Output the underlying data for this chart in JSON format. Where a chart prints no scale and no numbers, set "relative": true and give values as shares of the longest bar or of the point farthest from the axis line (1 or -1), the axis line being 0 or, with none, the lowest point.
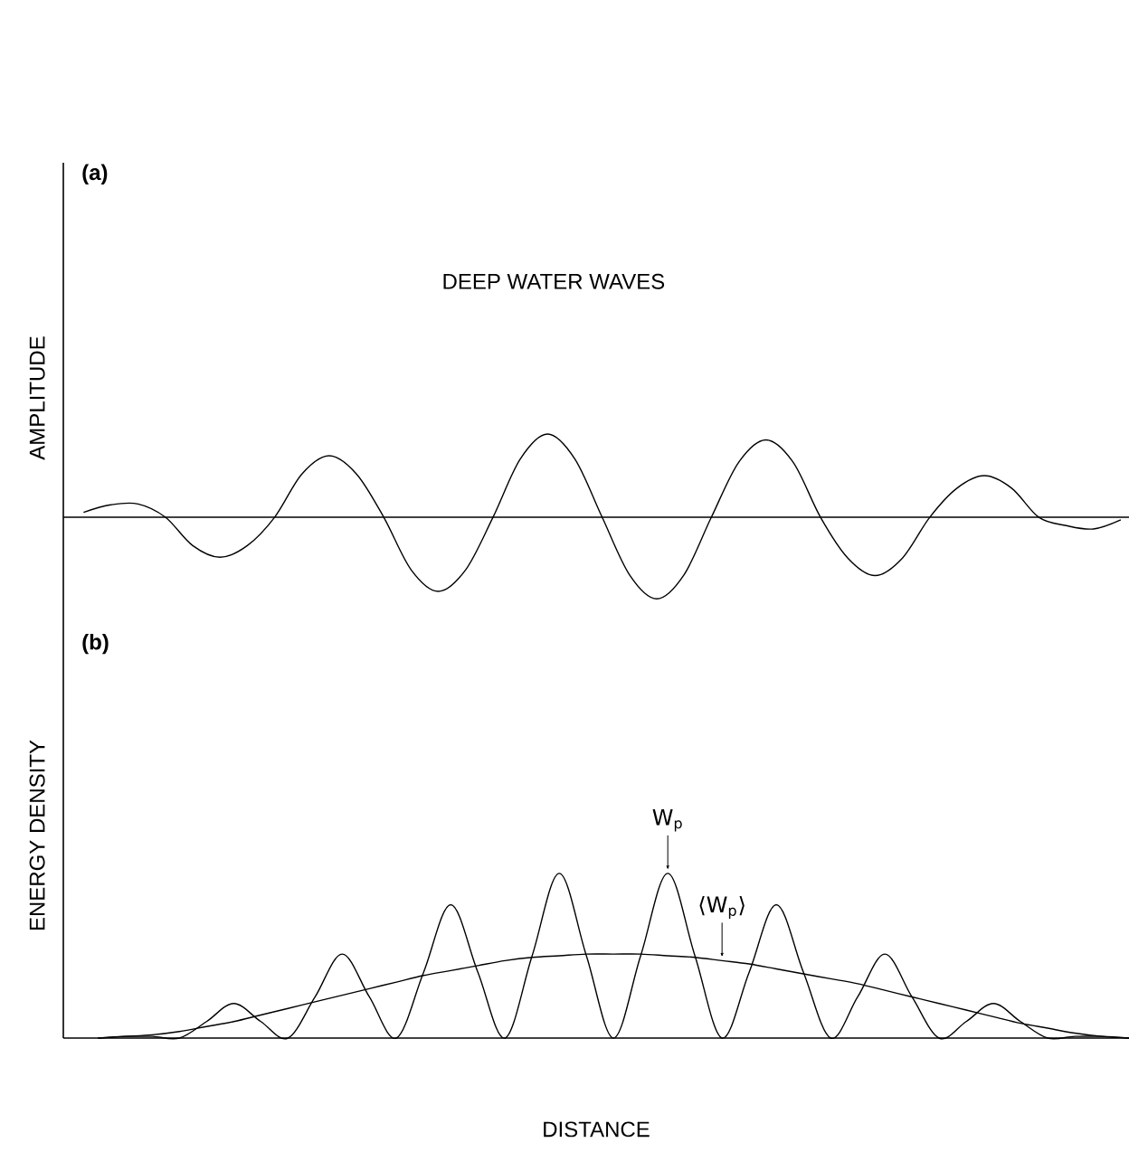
{
  "chart_data": [
    {
      "type": "line",
      "title": "(a)",
      "subtitle": "DEEP WATER WAVES",
      "ylabel": "AMPLITUDE",
      "relative": true,
      "categories": [
        null,
        null,
        null,
        null,
        null,
        null,
        null,
        null,
        null,
        null,
        null,
        null,
        null,
        null,
        null,
        null,
        null,
        null,
        null,
        null,
        null,
        null,
        null,
        null,
        null,
        null,
        null,
        null,
        null,
        null,
        null,
        null,
        null,
        null,
        null,
        null,
        null,
        null,
        null
      ],
      "series": [
        {
          "color": "#000000",
          "values": [
            0.06,
            0.15,
            0.16,
            0,
            -0.34,
            -0.48,
            -0.34,
            0,
            0.52,
            0.74,
            0.52,
            0,
            -0.63,
            -0.89,
            -0.63,
            0,
            0.7,
            1,
            0.7,
            0,
            -0.69,
            -0.98,
            -0.69,
            0,
            0.66,
            0.93,
            0.66,
            0,
            -0.49,
            -0.7,
            -0.49,
            0,
            0.35,
            0.5,
            0.35,
            0,
            -0.1,
            -0.14,
            -0.03
          ]
        }
      ]
    },
    {
      "type": "line",
      "title": "(b)",
      "ylabel": "ENERGY DENSITY",
      "xlabel": "DISTANCE",
      "relative": true,
      "categories": [
        null,
        null,
        null,
        null,
        null,
        null,
        null,
        null,
        null,
        null,
        null,
        null,
        null,
        null,
        null,
        null,
        null,
        null,
        null,
        null,
        null,
        null,
        null,
        null,
        null,
        null,
        null,
        null,
        null,
        null,
        null,
        null,
        null,
        null,
        null,
        null,
        null,
        null,
        null
      ],
      "series": [
        {
          "color": "#000000",
          "values": [
            0,
            0.01,
            0.01,
            0,
            0.1,
            0.21,
            0.1,
            0,
            0.25,
            0.51,
            0.25,
            0,
            0.4,
            0.81,
            0.4,
            0,
            0.5,
            1,
            0.5,
            0,
            0.5,
            1,
            0.5,
            0,
            0.4,
            0.81,
            0.4,
            0,
            0.25,
            0.51,
            0.25,
            0,
            0.1,
            0.21,
            0.1,
            0,
            0.01,
            0.01,
            0
          ]
        },
        {
          "color": "#000000",
          "values": [
            0,
            0.01,
            0.02,
            0.04,
            0.07,
            0.1,
            0.14,
            0.18,
            0.22,
            0.26,
            0.3,
            0.34,
            0.38,
            0.41,
            0.44,
            0.47,
            0.49,
            0.5,
            0.51,
            0.51,
            0.51,
            0.5,
            0.49,
            0.47,
            0.45,
            0.42,
            0.39,
            0.36,
            0.33,
            0.29,
            0.25,
            0.21,
            0.17,
            0.13,
            0.09,
            0.06,
            0.03,
            0.01,
            0
          ]
        }
      ],
      "annotations": [
        {
          "text": "W$_{p}$",
          "y": 1
        },
        {
          "text": "⟨W$_{p}$⟩",
          "y": 0.47
        }
      ]
    }
  ]
}
